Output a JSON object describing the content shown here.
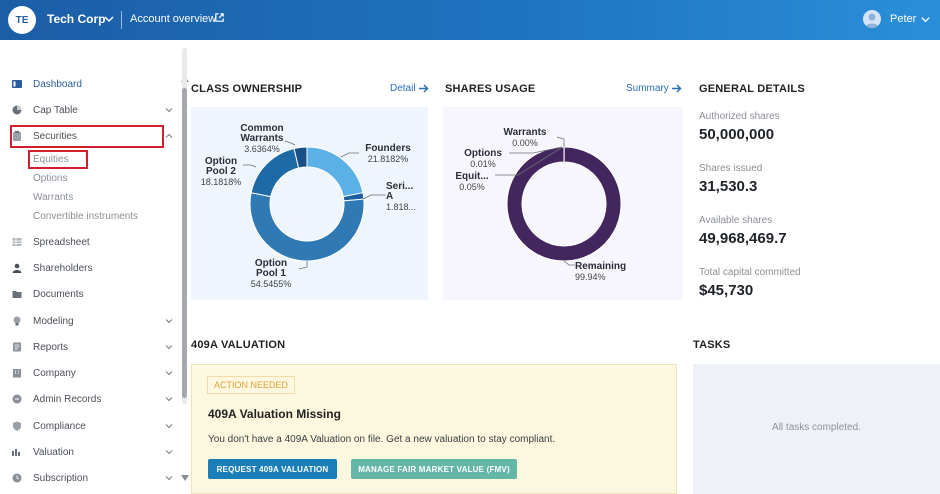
{
  "header": {
    "avatar_initials": "TE",
    "company_name": "Tech Corp",
    "account_overview_label": "Account overview",
    "user_name": "Peter"
  },
  "sidebar": {
    "items": [
      {
        "label": "Dashboard",
        "icon": "dashboard-icon"
      },
      {
        "label": "Cap Table",
        "icon": "pie-chart-icon"
      },
      {
        "label": "Securities",
        "icon": "clipboard-icon"
      },
      {
        "label": "Spreadsheet",
        "icon": "spreadsheet-icon"
      },
      {
        "label": "Shareholders",
        "icon": "person-icon"
      },
      {
        "label": "Documents",
        "icon": "folder-icon"
      },
      {
        "label": "Modeling",
        "icon": "lightbulb-icon"
      },
      {
        "label": "Reports",
        "icon": "report-icon"
      },
      {
        "label": "Company",
        "icon": "building-icon"
      },
      {
        "label": "Admin Records",
        "icon": "records-icon"
      },
      {
        "label": "Compliance",
        "icon": "shield-icon"
      },
      {
        "label": "Valuation",
        "icon": "valuation-icon"
      },
      {
        "label": "Subscription",
        "icon": "subscription-icon"
      }
    ],
    "securities_sub": [
      "Equities",
      "Options",
      "Warrants",
      "Convertible instruments"
    ]
  },
  "class_ownership": {
    "title": "CLASS OWNERSHIP",
    "link": "Detail",
    "labels": [
      {
        "name": "Common Warrants",
        "value": "3.6364%"
      },
      {
        "name": "Founders",
        "value": "21.8182%"
      },
      {
        "name": "Option Pool 2",
        "value": "18.1818%"
      },
      {
        "name": "Seri... A",
        "value": "1.818..."
      },
      {
        "name": "Option Pool 1",
        "value": "54.5455%"
      }
    ]
  },
  "shares_usage": {
    "title": "SHARES USAGE",
    "link": "Summary",
    "labels": [
      {
        "name": "Warrants",
        "value": "0.00%"
      },
      {
        "name": "Options",
        "value": "0.01%"
      },
      {
        "name": "Equit...",
        "value": "0.05%"
      },
      {
        "name": "Remaining",
        "value": "99.94%"
      }
    ]
  },
  "chart_data": [
    {
      "type": "pie",
      "title": "CLASS OWNERSHIP",
      "categories": [
        "Founders",
        "Series A",
        "Option Pool 1",
        "Option Pool 2",
        "Common Warrants"
      ],
      "values": [
        21.8182,
        1.8182,
        54.5455,
        18.1818,
        3.6364
      ],
      "colors": [
        "#5bb0e6",
        "#1d5f9e",
        "#2f79b4",
        "#1d6aa8",
        "#184f86"
      ]
    },
    {
      "type": "pie",
      "title": "SHARES USAGE",
      "categories": [
        "Warrants",
        "Options",
        "Equities",
        "Remaining"
      ],
      "values": [
        0.0,
        0.01,
        0.05,
        99.94
      ],
      "colors": [
        "#c9bfe0",
        "#b6a8d6",
        "#a08cc8",
        "#44265f"
      ]
    }
  ],
  "general_details": {
    "title": "GENERAL DETAILS",
    "rows": [
      {
        "label": "Authorized shares",
        "value": "50,000,000"
      },
      {
        "label": "Shares issued",
        "value": "31,530.3"
      },
      {
        "label": "Available shares",
        "value": "49,968,469.7"
      },
      {
        "label": "Total capital committed",
        "value": "$45,730"
      }
    ]
  },
  "valuation": {
    "title": "409A VALUATION",
    "badge": "ACTION NEEDED",
    "heading": "409A Valuation Missing",
    "description": "You don't have a 409A Valuation on file. Get a new valuation to stay compliant.",
    "primary_button": "REQUEST 409A VALUATION",
    "secondary_button": "MANAGE FAIR MARKET VALUE (FMV)"
  },
  "tasks": {
    "title": "TASKS",
    "empty_text": "All tasks completed."
  },
  "colors": {
    "accent": "#2a6fb8",
    "highlight": "#d0202f",
    "ownership_panel_bg": "#eef5fc",
    "usage_panel_bg": "#f8f6fd"
  }
}
